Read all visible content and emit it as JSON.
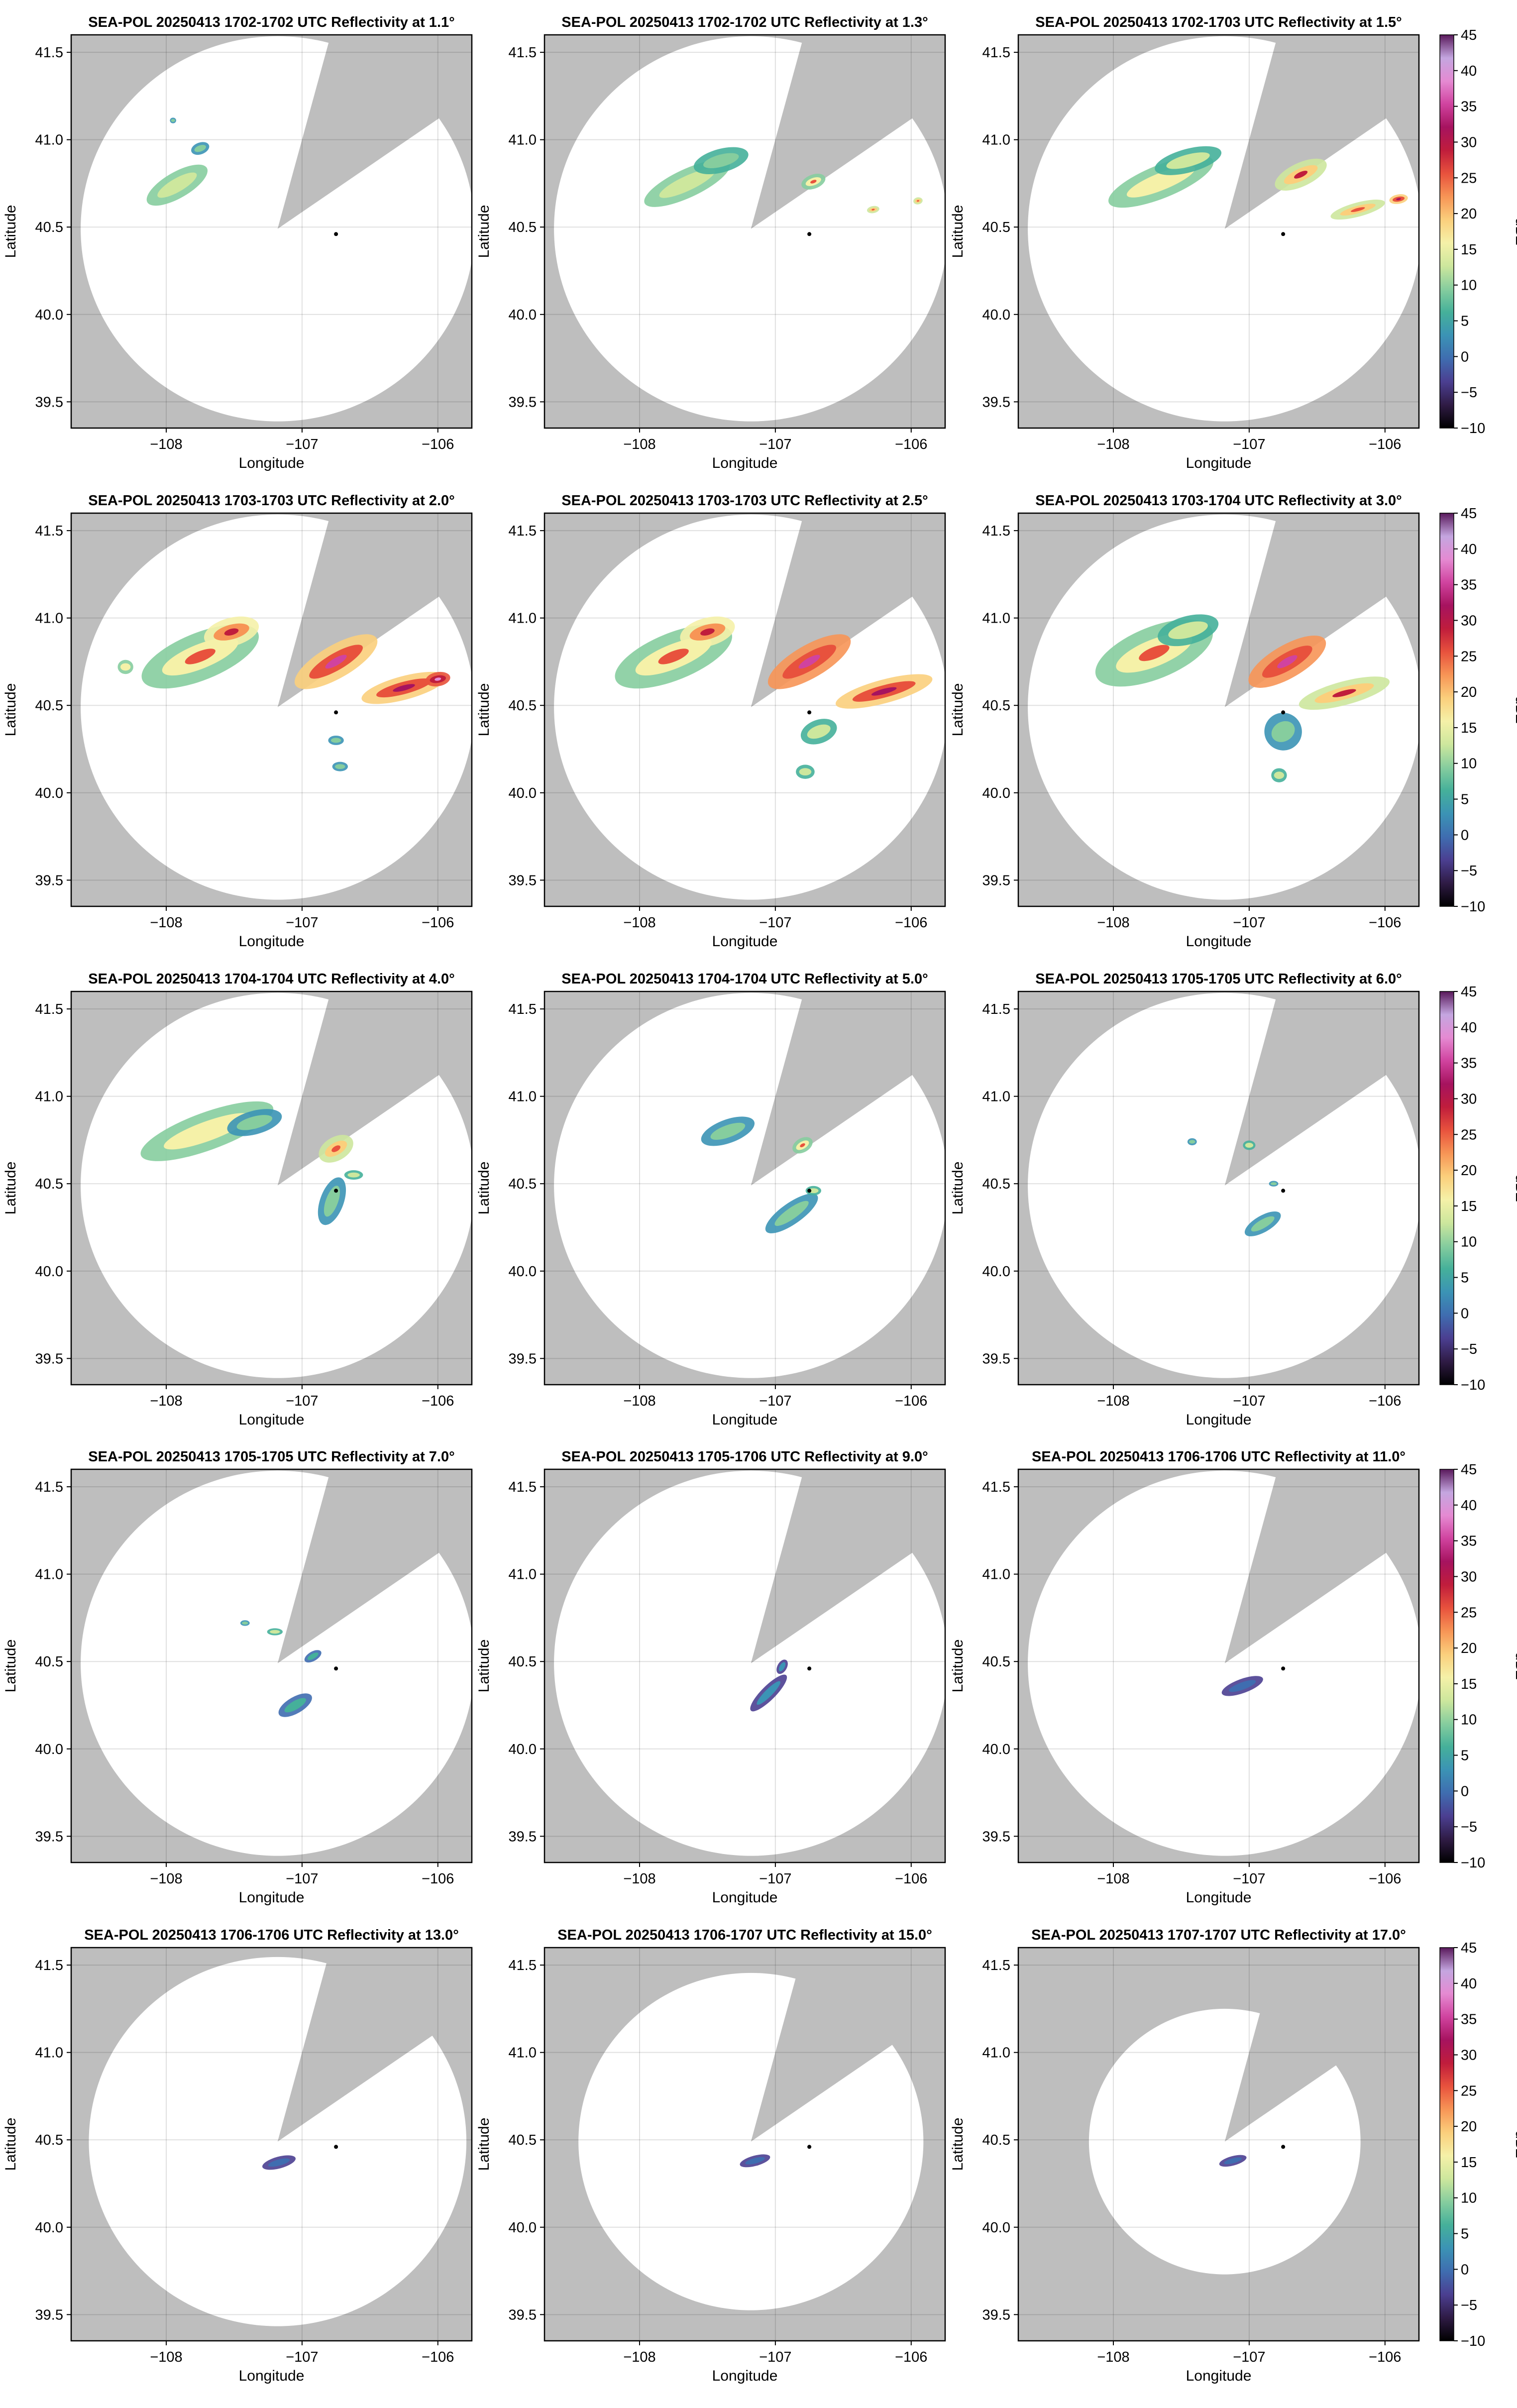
{
  "chart_data": {
    "type": "heatmap",
    "grid": "on",
    "xlabel": "Longitude",
    "ylabel": "Latitude",
    "xlim": [
      -108.7,
      -105.75
    ],
    "ylim": [
      39.35,
      41.6
    ],
    "xticks": [
      -108,
      -107,
      -106
    ],
    "xtick_labels": [
      "−108",
      "−107",
      "−106"
    ],
    "yticks": [
      39.5,
      40.0,
      40.5,
      41.0,
      41.5
    ],
    "ytick_labels": [
      "39.5",
      "40.0",
      "40.5",
      "41.0",
      "41.5"
    ],
    "radar_site": {
      "lon": -107.18,
      "lat": 40.49
    },
    "marker": {
      "lon": -106.75,
      "lat": 40.46
    },
    "colorbar": {
      "label": "dBZ",
      "min": -10,
      "max": 45,
      "ticks": [
        -10,
        -5,
        0,
        5,
        10,
        15,
        20,
        25,
        30,
        35,
        40,
        45
      ],
      "tick_labels": [
        "−10",
        "−5",
        "0",
        "5",
        "10",
        "15",
        "20",
        "25",
        "30",
        "35",
        "40",
        "45"
      ],
      "colors": [
        "#000000",
        "#2f1b45",
        "#4b3f91",
        "#3f6db0",
        "#3b93b5",
        "#45b09a",
        "#86cd9e",
        "#cde79d",
        "#f5f1a8",
        "#fbcf7c",
        "#f79556",
        "#e8523d",
        "#c01d3c",
        "#a6135f",
        "#d0439f",
        "#e58ad2",
        "#c4a6e0",
        "#5a1a5c"
      ]
    },
    "colors": {
      "beam_blocked": "#bebebe",
      "coverage": "#ffffff",
      "marker": "#000000"
    },
    "panels": [
      {
        "title": "SEA-POL 20250413 1702-1702 UTC Reflectivity at 1.1°",
        "radius_deg": 1.45,
        "echoes": [
          {
            "lon": -107.92,
            "lat": 40.74,
            "a": 0.22,
            "b": 0.055,
            "rot": 30,
            "dbz": 14
          },
          {
            "lon": -107.75,
            "lat": 40.95,
            "a": 0.06,
            "b": 0.025,
            "rot": 20,
            "dbz": 9
          },
          {
            "lon": -107.95,
            "lat": 41.11,
            "a": 0.02,
            "b": 0.012,
            "rot": 0,
            "dbz": 9
          }
        ]
      },
      {
        "title": "SEA-POL 20250413 1702-1702 UTC Reflectivity at 1.3°",
        "radius_deg": 1.45,
        "echoes": [
          {
            "lon": -107.65,
            "lat": 40.75,
            "a": 0.3,
            "b": 0.06,
            "rot": 25,
            "dbz": 14
          },
          {
            "lon": -107.4,
            "lat": 40.88,
            "a": 0.18,
            "b": 0.05,
            "rot": 15,
            "dbz": 11
          },
          {
            "lon": -106.72,
            "lat": 40.76,
            "a": 0.08,
            "b": 0.03,
            "rot": 20,
            "dbz": 16
          },
          {
            "lon": -106.28,
            "lat": 40.6,
            "a": 0.04,
            "b": 0.015,
            "rot": 10,
            "dbz": 18
          },
          {
            "lon": -105.95,
            "lat": 40.65,
            "a": 0.03,
            "b": 0.015,
            "rot": 10,
            "dbz": 18
          }
        ]
      },
      {
        "title": "SEA-POL 20250413 1702-1703 UTC Reflectivity at 1.5°",
        "radius_deg": 1.45,
        "echoes": [
          {
            "lon": -107.65,
            "lat": 40.76,
            "a": 0.36,
            "b": 0.07,
            "rot": 22,
            "dbz": 15
          },
          {
            "lon": -107.45,
            "lat": 40.88,
            "a": 0.22,
            "b": 0.05,
            "rot": 15,
            "dbz": 12
          },
          {
            "lon": -106.62,
            "lat": 40.8,
            "a": 0.18,
            "b": 0.05,
            "rot": 25,
            "dbz": 20
          },
          {
            "lon": -106.2,
            "lat": 40.6,
            "a": 0.18,
            "b": 0.03,
            "rot": 15,
            "dbz": 18
          },
          {
            "lon": -105.9,
            "lat": 40.66,
            "a": 0.06,
            "b": 0.02,
            "rot": 10,
            "dbz": 24
          }
        ]
      },
      {
        "title": "SEA-POL 20250413 1703-1703 UTC Reflectivity at 2.0°",
        "radius_deg": 1.45,
        "echoes": [
          {
            "lon": -107.75,
            "lat": 40.78,
            "a": 0.4,
            "b": 0.1,
            "rot": 22,
            "dbz": 17
          },
          {
            "lon": -107.52,
            "lat": 40.92,
            "a": 0.18,
            "b": 0.06,
            "rot": 15,
            "dbz": 22
          },
          {
            "lon": -106.75,
            "lat": 40.75,
            "a": 0.3,
            "b": 0.07,
            "rot": 30,
            "dbz": 26
          },
          {
            "lon": -106.25,
            "lat": 40.6,
            "a": 0.28,
            "b": 0.05,
            "rot": 15,
            "dbz": 24
          },
          {
            "lon": -106.0,
            "lat": 40.65,
            "a": 0.08,
            "b": 0.03,
            "rot": 10,
            "dbz": 30
          },
          {
            "lon": -106.75,
            "lat": 40.3,
            "a": 0.05,
            "b": 0.02,
            "rot": 0,
            "dbz": 8
          },
          {
            "lon": -106.72,
            "lat": 40.15,
            "a": 0.05,
            "b": 0.02,
            "rot": 0,
            "dbz": 9
          },
          {
            "lon": -108.3,
            "lat": 40.72,
            "a": 0.05,
            "b": 0.03,
            "rot": 0,
            "dbz": 15
          }
        ]
      },
      {
        "title": "SEA-POL 20250413 1703-1703 UTC Reflectivity at 2.5°",
        "radius_deg": 1.45,
        "echoes": [
          {
            "lon": -107.75,
            "lat": 40.78,
            "a": 0.4,
            "b": 0.1,
            "rot": 22,
            "dbz": 17
          },
          {
            "lon": -107.5,
            "lat": 40.92,
            "a": 0.18,
            "b": 0.06,
            "rot": 15,
            "dbz": 22
          },
          {
            "lon": -106.75,
            "lat": 40.75,
            "a": 0.3,
            "b": 0.07,
            "rot": 30,
            "dbz": 27
          },
          {
            "lon": -106.2,
            "lat": 40.58,
            "a": 0.32,
            "b": 0.05,
            "rot": 15,
            "dbz": 24
          },
          {
            "lon": -106.68,
            "lat": 40.35,
            "a": 0.12,
            "b": 0.05,
            "rot": 20,
            "dbz": 12
          },
          {
            "lon": -106.78,
            "lat": 40.12,
            "a": 0.06,
            "b": 0.03,
            "rot": 0,
            "dbz": 12
          }
        ]
      },
      {
        "title": "SEA-POL 20250413 1703-1704 UTC Reflectivity at 3.0°",
        "radius_deg": 1.45,
        "echoes": [
          {
            "lon": -107.7,
            "lat": 40.8,
            "a": 0.4,
            "b": 0.11,
            "rot": 22,
            "dbz": 16
          },
          {
            "lon": -107.45,
            "lat": 40.93,
            "a": 0.2,
            "b": 0.06,
            "rot": 15,
            "dbz": 12
          },
          {
            "lon": -106.72,
            "lat": 40.75,
            "a": 0.28,
            "b": 0.07,
            "rot": 30,
            "dbz": 27
          },
          {
            "lon": -106.3,
            "lat": 40.57,
            "a": 0.3,
            "b": 0.05,
            "rot": 15,
            "dbz": 20
          },
          {
            "lon": -106.75,
            "lat": 40.35,
            "a": 0.12,
            "b": 0.08,
            "rot": 30,
            "dbz": 9
          },
          {
            "lon": -106.78,
            "lat": 40.1,
            "a": 0.05,
            "b": 0.03,
            "rot": 0,
            "dbz": 12
          }
        ]
      },
      {
        "title": "SEA-POL 20250413 1704-1704 UTC Reflectivity at 4.0°",
        "radius_deg": 1.45,
        "echoes": [
          {
            "lon": -107.7,
            "lat": 40.8,
            "a": 0.45,
            "b": 0.08,
            "rot": 20,
            "dbz": 15
          },
          {
            "lon": -107.35,
            "lat": 40.85,
            "a": 0.18,
            "b": 0.05,
            "rot": 15,
            "dbz": 10
          },
          {
            "lon": -106.75,
            "lat": 40.7,
            "a": 0.12,
            "b": 0.05,
            "rot": 30,
            "dbz": 18
          },
          {
            "lon": -106.78,
            "lat": 40.4,
            "a": 0.16,
            "b": 0.05,
            "rot": 70,
            "dbz": 9
          },
          {
            "lon": -106.62,
            "lat": 40.55,
            "a": 0.06,
            "b": 0.02,
            "rot": 0,
            "dbz": 12
          }
        ]
      },
      {
        "title": "SEA-POL 20250413 1704-1704 UTC Reflectivity at 5.0°",
        "radius_deg": 1.45,
        "echoes": [
          {
            "lon": -107.35,
            "lat": 40.8,
            "a": 0.18,
            "b": 0.05,
            "rot": 20,
            "dbz": 10
          },
          {
            "lon": -106.88,
            "lat": 40.33,
            "a": 0.2,
            "b": 0.045,
            "rot": 35,
            "dbz": 9
          },
          {
            "lon": -106.8,
            "lat": 40.72,
            "a": 0.07,
            "b": 0.03,
            "rot": 30,
            "dbz": 16
          },
          {
            "lon": -106.72,
            "lat": 40.46,
            "a": 0.05,
            "b": 0.02,
            "rot": 0,
            "dbz": 12
          }
        ]
      },
      {
        "title": "SEA-POL 20250413 1705-1705 UTC Reflectivity at 6.0°",
        "radius_deg": 1.45,
        "echoes": [
          {
            "lon": -106.9,
            "lat": 40.27,
            "a": 0.13,
            "b": 0.035,
            "rot": 30,
            "dbz": 8
          },
          {
            "lon": -107.0,
            "lat": 40.72,
            "a": 0.04,
            "b": 0.02,
            "rot": 0,
            "dbz": 13
          },
          {
            "lon": -107.42,
            "lat": 40.74,
            "a": 0.03,
            "b": 0.015,
            "rot": 0,
            "dbz": 10
          },
          {
            "lon": -106.82,
            "lat": 40.5,
            "a": 0.03,
            "b": 0.012,
            "rot": 0,
            "dbz": 8
          }
        ]
      },
      {
        "title": "SEA-POL 20250413 1705-1705 UTC Reflectivity at 7.0°",
        "radius_deg": 1.45,
        "echoes": [
          {
            "lon": -107.05,
            "lat": 40.25,
            "a": 0.12,
            "b": 0.035,
            "rot": 30,
            "dbz": 6
          },
          {
            "lon": -106.92,
            "lat": 40.53,
            "a": 0.06,
            "b": 0.02,
            "rot": 30,
            "dbz": 7
          },
          {
            "lon": -107.2,
            "lat": 40.67,
            "a": 0.05,
            "b": 0.015,
            "rot": 0,
            "dbz": 13
          },
          {
            "lon": -107.42,
            "lat": 40.72,
            "a": 0.03,
            "b": 0.012,
            "rot": 0,
            "dbz": 10
          }
        ]
      },
      {
        "title": "SEA-POL 20250413 1705-1706 UTC Reflectivity at 9.0°",
        "radius_deg": 1.45,
        "echoes": [
          {
            "lon": -107.05,
            "lat": 40.32,
            "a": 0.16,
            "b": 0.03,
            "rot": 45,
            "dbz": 4
          },
          {
            "lon": -106.95,
            "lat": 40.47,
            "a": 0.05,
            "b": 0.02,
            "rot": 60,
            "dbz": 4
          }
        ]
      },
      {
        "title": "SEA-POL 20250413 1706-1706 UTC Reflectivity at 11.0°",
        "radius_deg": 1.45,
        "echoes": [
          {
            "lon": -107.05,
            "lat": 40.36,
            "a": 0.14,
            "b": 0.03,
            "rot": 20,
            "dbz": 1
          }
        ]
      },
      {
        "title": "SEA-POL 20250413 1706-1706 UTC Reflectivity at 13.0°",
        "radius_deg": 1.39,
        "echoes": [
          {
            "lon": -107.17,
            "lat": 40.37,
            "a": 0.11,
            "b": 0.025,
            "rot": 15,
            "dbz": 1
          }
        ]
      },
      {
        "title": "SEA-POL 20250413 1706-1707 UTC Reflectivity at 15.0°",
        "radius_deg": 1.27,
        "echoes": [
          {
            "lon": -107.15,
            "lat": 40.38,
            "a": 0.1,
            "b": 0.022,
            "rot": 15,
            "dbz": 1
          }
        ]
      },
      {
        "title": "SEA-POL 20250413 1707-1707 UTC Reflectivity at 17.0°",
        "radius_deg": 1.0,
        "echoes": [
          {
            "lon": -107.12,
            "lat": 40.38,
            "a": 0.09,
            "b": 0.02,
            "rot": 15,
            "dbz": 1
          }
        ]
      }
    ]
  }
}
